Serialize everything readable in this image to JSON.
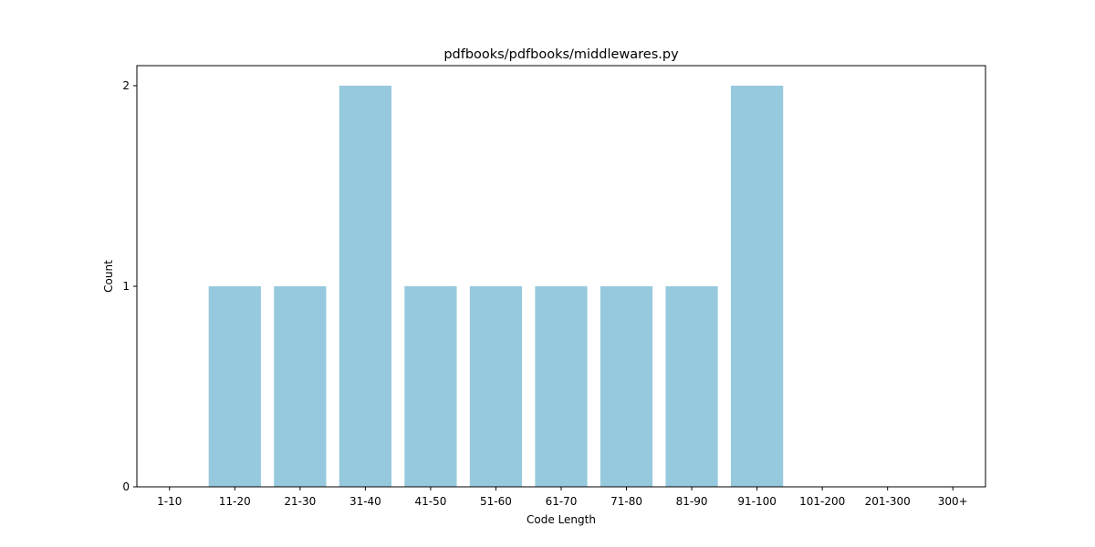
{
  "chart_data": {
    "type": "bar",
    "title": "pdfbooks/pdfbooks/middlewares.py",
    "xlabel": "Code Length",
    "ylabel": "Count",
    "categories": [
      "1-10",
      "11-20",
      "21-30",
      "31-40",
      "41-50",
      "51-60",
      "61-70",
      "71-80",
      "81-90",
      "91-100",
      "101-200",
      "201-300",
      "300+"
    ],
    "values": [
      0,
      1,
      1,
      2,
      1,
      1,
      1,
      1,
      1,
      2,
      0,
      0,
      0
    ],
    "ylim": [
      0,
      2.1
    ],
    "yticks": [
      "0",
      "1",
      "2"
    ],
    "bar_color": "#96c9dd",
    "grid": false,
    "legend": "none"
  }
}
